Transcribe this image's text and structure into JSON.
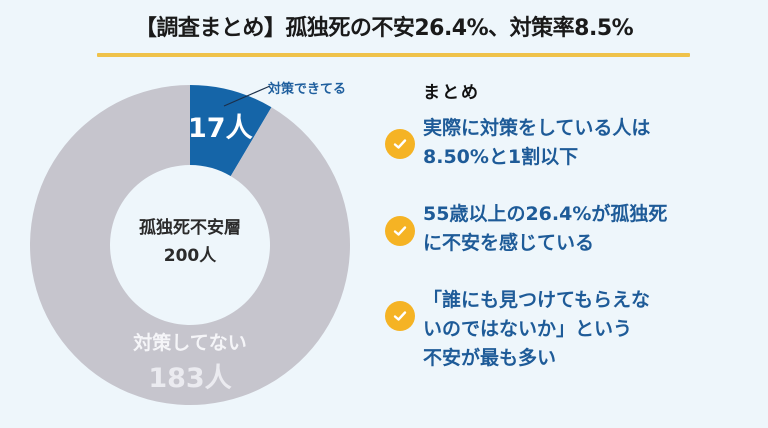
{
  "header": {
    "title": "【調査まとめ】孤独死の不安26.4%、対策率8.5%",
    "underline_color": "#efc24a"
  },
  "colors": {
    "background": "#eef6fb",
    "segment_blue": "#1565a8",
    "segment_gray": "#c6c5cd",
    "accent_check": "#f5b324",
    "summary_text": "#1e5b98"
  },
  "donut": {
    "center_label_line1": "孤独死不安層",
    "center_label_line2": "200人",
    "segments": [
      {
        "label": "対策できてる",
        "value_label": "17人",
        "value": 17,
        "color": "#1565a8"
      },
      {
        "label": "対策してない",
        "value_label": "183人",
        "value": 183,
        "color": "#c6c5cd"
      }
    ]
  },
  "summary": {
    "heading": "まとめ",
    "items": [
      {
        "icon": "check-circle-icon",
        "text": "実際に対策をしている人は\n8.50%と1割以下"
      },
      {
        "icon": "check-circle-icon",
        "text": "55歳以上の26.4%が孤独死\nに不安を感じている"
      },
      {
        "icon": "check-circle-icon",
        "text": "「誰にも見つけてもらえな\nいのではないか」という\n不安が最も多い"
      }
    ]
  },
  "chart_data": {
    "type": "pie",
    "subtype": "donut",
    "title": "孤独死不安層 200人",
    "categories": [
      "対策できてる",
      "対策してない"
    ],
    "values": [
      17,
      183
    ],
    "units": "人",
    "total": 200,
    "percentages": [
      8.5,
      91.5
    ],
    "colors": [
      "#1565a8",
      "#c6c5cd"
    ],
    "start_angle": "12 o'clock, clockwise",
    "legend": "none (inline labels)"
  }
}
